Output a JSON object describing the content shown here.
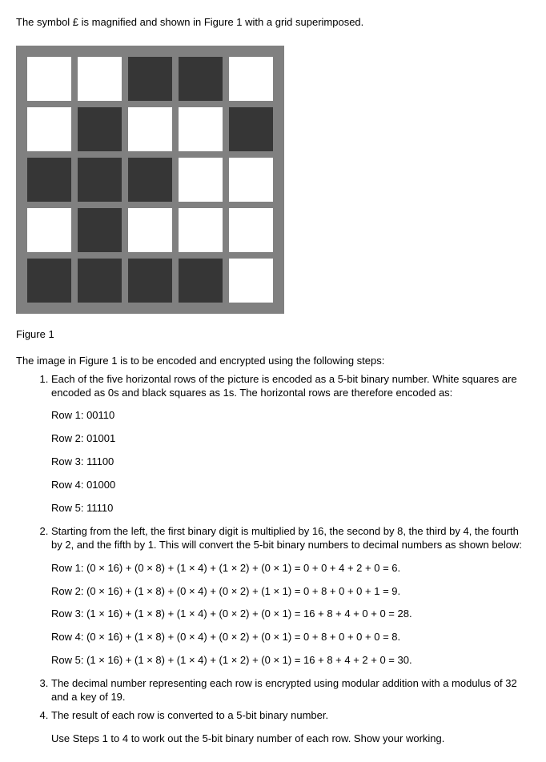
{
  "intro_text": "The symbol £ is magnified and shown in Figure 1 with a grid superimposed.",
  "figure_caption": "Figure 1",
  "encode_intro": "The image in Figure 1 is to be encoded and encrypted using the following steps:",
  "colors": {
    "white_cell": "#ffffff",
    "black_cell": "#363636",
    "grid_border": "#808080"
  },
  "grid": {
    "rows": [
      [
        0,
        0,
        1,
        1,
        0
      ],
      [
        0,
        1,
        0,
        0,
        1
      ],
      [
        1,
        1,
        1,
        0,
        0
      ],
      [
        0,
        1,
        0,
        0,
        0
      ],
      [
        1,
        1,
        1,
        1,
        0
      ]
    ]
  },
  "steps": {
    "step1": {
      "text": "Each of the five horizontal rows of the picture is encoded as a 5-bit binary number. White squares are encoded as 0s and black squares as 1s. The horizontal rows are therefore encoded as:",
      "rows": [
        "Row 1: 00110",
        "Row 2: 01001",
        "Row 3: 11100",
        "Row 4: 01000",
        "Row 5: 11110"
      ]
    },
    "step2": {
      "text": "Starting from the left, the first binary digit is multiplied by 16, the second by 8, the third by 4, the fourth by 2, and the fifth by 1. This will convert the 5-bit binary numbers to decimal numbers as shown below:",
      "rows": [
        "Row 1: (0 × 16) + (0 × 8) + (1 × 4) + (1 × 2) + (0 × 1) = 0 + 0 + 4 + 2 + 0 = 6.",
        "Row 2: (0 × 16) + (1 × 8) + (0 × 4) + (0 × 2) + (1 × 1) = 0 + 8 + 0 + 0 + 1 = 9.",
        "Row 3: (1 × 16) + (1 × 8) + (1 × 4) + (0 × 2) + (0 × 1) = 16 + 8 + 4 + 0 + 0 = 28.",
        "Row 4: (0 × 16) + (1 × 8) + (0 × 4) + (0 × 2) + (0 × 1) = 0 + 8 + 0 + 0 + 0 = 8.",
        "Row 5: (1 × 16) + (1 × 8) + (1 × 4) + (1 × 2) + (0 × 1) = 16 + 8 + 4 + 2 + 0 = 30."
      ]
    },
    "step3": {
      "text": "The decimal number representing each row is encrypted using modular addition with a modulus of 32 and a key of 19."
    },
    "step4": {
      "text": "The result of each row is converted to a 5-bit binary number.",
      "instruction": "Use Steps 1 to 4 to work out the 5-bit binary number of each row. Show your working."
    }
  }
}
